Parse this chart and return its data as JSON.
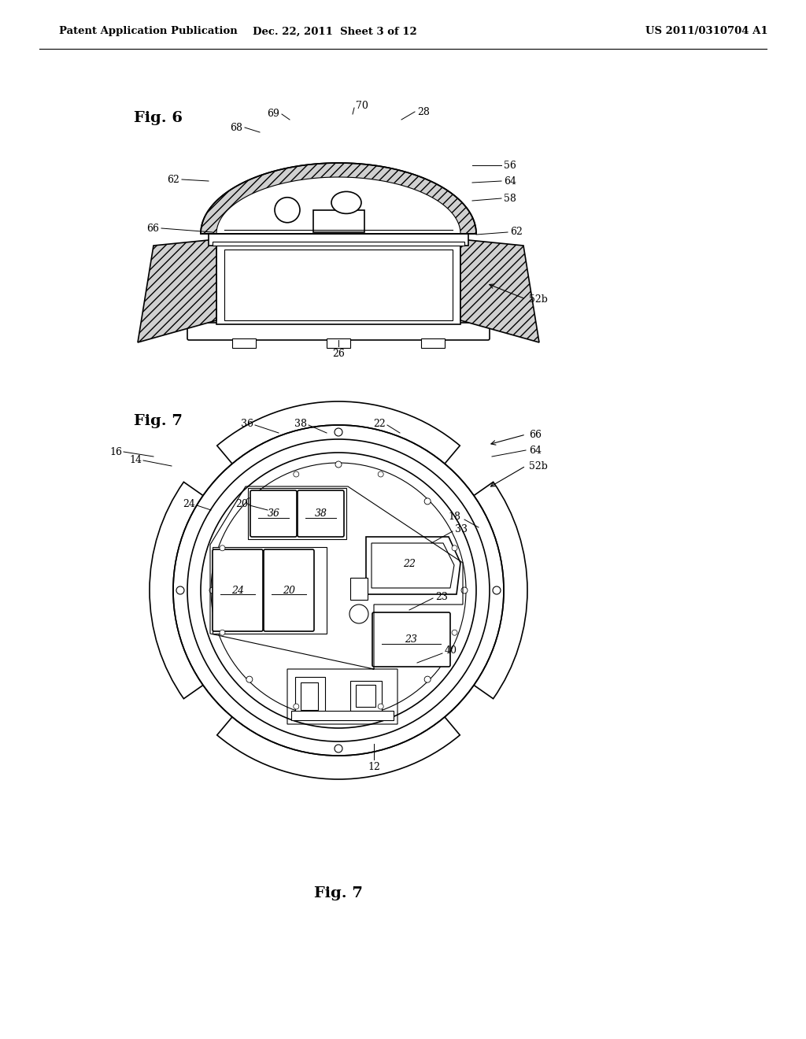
{
  "bg_color": "#ffffff",
  "header_left": "Patent Application Publication",
  "header_mid": "Dec. 22, 2011  Sheet 3 of 12",
  "header_right": "US 2011/0310704 A1",
  "fig6_label": "Fig. 6",
  "fig7_label": "Fig. 7",
  "page_width": 1.0,
  "page_height": 1.0
}
